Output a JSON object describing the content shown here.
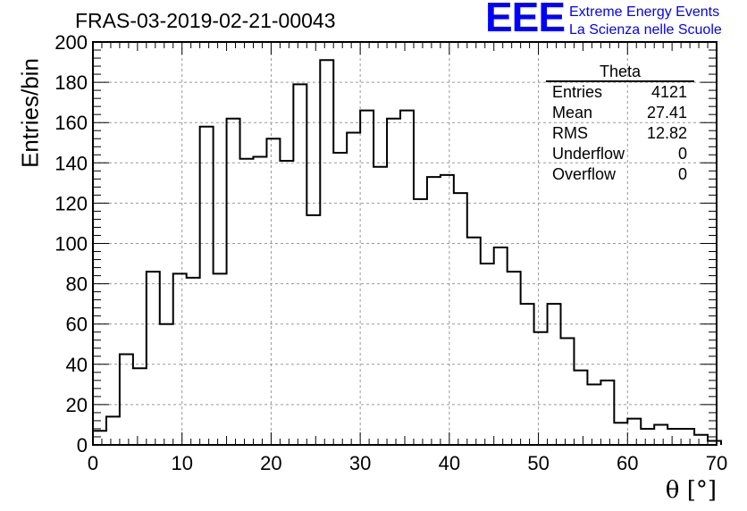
{
  "header": {
    "run_title": "FRAS-03-2019-02-21-00043",
    "logo_text": "EEE",
    "logo_line1": "Extreme Energy Events",
    "logo_line2": "La Scienza nelle Scuole"
  },
  "stats": {
    "title": "Theta",
    "rows": [
      {
        "label": "Entries",
        "value": "4121"
      },
      {
        "label": "Mean",
        "value": "27.41"
      },
      {
        "label": "RMS",
        "value": "12.82"
      },
      {
        "label": "Underflow",
        "value": "0"
      },
      {
        "label": "Overflow",
        "value": "0"
      }
    ]
  },
  "chart_data": {
    "type": "histogram-step",
    "title": "FRAS-03-2019-02-21-00043",
    "xlabel": "θ [°]",
    "ylabel": "Entries/bin",
    "xlim": [
      0,
      70
    ],
    "ylim": [
      0,
      200
    ],
    "x_ticks": [
      0,
      10,
      20,
      30,
      40,
      50,
      60,
      70
    ],
    "y_ticks": [
      0,
      20,
      40,
      60,
      80,
      100,
      120,
      140,
      160,
      180,
      200
    ],
    "grid": true,
    "bin_width": 1.5,
    "bin_edges_start": 0,
    "values": [
      7,
      14,
      45,
      38,
      86,
      60,
      85,
      83,
      158,
      85,
      162,
      142,
      143,
      152,
      141,
      179,
      114,
      191,
      145,
      155,
      166,
      138,
      162,
      166,
      122,
      133,
      134,
      125,
      103,
      90,
      98,
      86,
      70,
      56,
      70,
      53,
      37,
      30,
      32,
      11,
      13,
      8,
      10,
      8,
      8,
      5,
      2
    ]
  }
}
